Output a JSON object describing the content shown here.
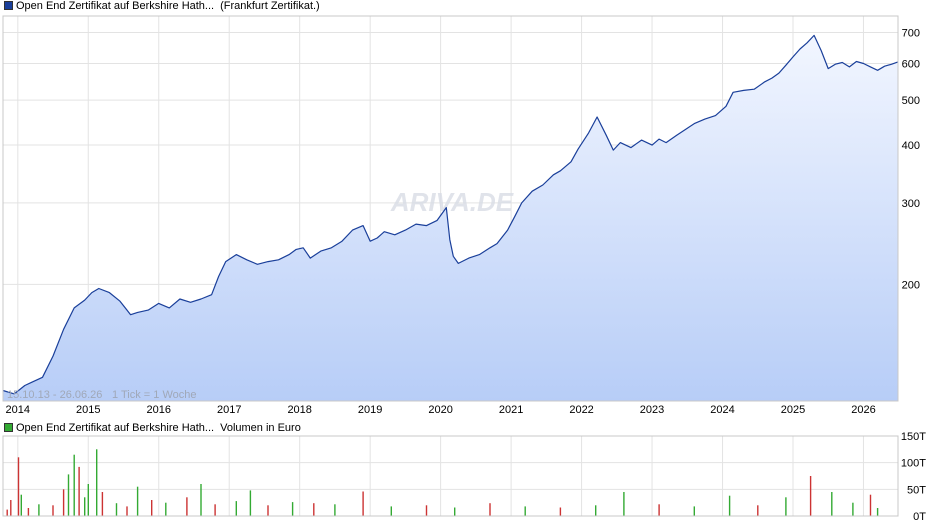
{
  "price_legend": {
    "color": "#1a3f9a",
    "name": "Open End Zertifikat auf Berkshire Hath...",
    "exchange": "(Frankfurt Zertifikat.)"
  },
  "volume_legend": {
    "color": "#33aa33",
    "name": "Open End Zertifikat auf Berkshire Hath...",
    "unit": "Volumen in Euro"
  },
  "range_note": "15.10.13 - 26.06.26",
  "tick_note": "1 Tick = 1 Woche",
  "watermark": "ARIVA.DE",
  "chart_data": [
    {
      "type": "area",
      "scale": "log",
      "ylim": [
        112,
        760
      ],
      "xlim": [
        2013.79,
        2026.49
      ],
      "x_ticks": [
        2014,
        2015,
        2016,
        2017,
        2018,
        2019,
        2020,
        2021,
        2022,
        2023,
        2024,
        2025,
        2026
      ],
      "y_ticks": [
        200,
        300,
        400,
        500,
        600,
        700
      ],
      "grid": true,
      "series": [
        {
          "name": "Open End Zertifikat auf Berkshire Hath...",
          "color": "#1a3f9a",
          "points": [
            [
              2013.79,
              118
            ],
            [
              2013.95,
              116
            ],
            [
              2014.1,
              121
            ],
            [
              2014.2,
              123
            ],
            [
              2014.35,
              126
            ],
            [
              2014.5,
              140
            ],
            [
              2014.65,
              160
            ],
            [
              2014.8,
              178
            ],
            [
              2014.95,
              185
            ],
            [
              2015.05,
              192
            ],
            [
              2015.15,
              196
            ],
            [
              2015.3,
              192
            ],
            [
              2015.45,
              184
            ],
            [
              2015.6,
              172
            ],
            [
              2015.7,
              174
            ],
            [
              2015.85,
              176
            ],
            [
              2016.0,
              182
            ],
            [
              2016.15,
              178
            ],
            [
              2016.3,
              186
            ],
            [
              2016.45,
              183
            ],
            [
              2016.6,
              186
            ],
            [
              2016.75,
              190
            ],
            [
              2016.85,
              208
            ],
            [
              2016.95,
              224
            ],
            [
              2017.1,
              232
            ],
            [
              2017.25,
              226
            ],
            [
              2017.4,
              221
            ],
            [
              2017.55,
              224
            ],
            [
              2017.7,
              226
            ],
            [
              2017.85,
              232
            ],
            [
              2017.95,
              238
            ],
            [
              2018.05,
              240
            ],
            [
              2018.15,
              228
            ],
            [
              2018.3,
              236
            ],
            [
              2018.45,
              240
            ],
            [
              2018.6,
              248
            ],
            [
              2018.75,
              262
            ],
            [
              2018.9,
              268
            ],
            [
              2019.0,
              248
            ],
            [
              2019.1,
              252
            ],
            [
              2019.2,
              260
            ],
            [
              2019.35,
              256
            ],
            [
              2019.5,
              262
            ],
            [
              2019.65,
              270
            ],
            [
              2019.8,
              268
            ],
            [
              2019.95,
              275
            ],
            [
              2020.08,
              293
            ],
            [
              2020.13,
              250
            ],
            [
              2020.18,
              230
            ],
            [
              2020.25,
              222
            ],
            [
              2020.4,
              228
            ],
            [
              2020.55,
              232
            ],
            [
              2020.7,
              240
            ],
            [
              2020.8,
              245
            ],
            [
              2020.95,
              262
            ],
            [
              2021.05,
              280
            ],
            [
              2021.15,
              300
            ],
            [
              2021.3,
              318
            ],
            [
              2021.45,
              328
            ],
            [
              2021.6,
              345
            ],
            [
              2021.7,
              352
            ],
            [
              2021.85,
              368
            ],
            [
              2021.95,
              392
            ],
            [
              2022.1,
              425
            ],
            [
              2022.22,
              460
            ],
            [
              2022.35,
              420
            ],
            [
              2022.45,
              390
            ],
            [
              2022.55,
              405
            ],
            [
              2022.7,
              395
            ],
            [
              2022.85,
              410
            ],
            [
              2023.0,
              400
            ],
            [
              2023.1,
              412
            ],
            [
              2023.2,
              405
            ],
            [
              2023.35,
              420
            ],
            [
              2023.5,
              435
            ],
            [
              2023.6,
              445
            ],
            [
              2023.75,
              455
            ],
            [
              2023.9,
              463
            ],
            [
              2024.05,
              485
            ],
            [
              2024.15,
              520
            ],
            [
              2024.3,
              525
            ],
            [
              2024.45,
              528
            ],
            [
              2024.6,
              548
            ],
            [
              2024.7,
              558
            ],
            [
              2024.8,
              572
            ],
            [
              2024.9,
              595
            ],
            [
              2025.0,
              620
            ],
            [
              2025.1,
              645
            ],
            [
              2025.2,
              665
            ],
            [
              2025.3,
              690
            ],
            [
              2025.4,
              640
            ],
            [
              2025.5,
              585
            ],
            [
              2025.6,
              598
            ],
            [
              2025.7,
              603
            ],
            [
              2025.8,
              590
            ],
            [
              2025.9,
              606
            ],
            [
              2026.0,
              600
            ],
            [
              2026.1,
              590
            ],
            [
              2026.2,
              580
            ],
            [
              2026.3,
              592
            ],
            [
              2026.4,
              598
            ],
            [
              2026.49,
              605
            ]
          ]
        }
      ]
    },
    {
      "type": "bar",
      "ylim": [
        0,
        150
      ],
      "y_ticks": [
        0,
        50,
        100,
        150
      ],
      "y_tick_labels": [
        "0T",
        "50T",
        "100T",
        "150T"
      ],
      "colors": {
        "up": "#33aa33",
        "down": "#cc3333"
      },
      "series": [
        {
          "name": "Volumen in Euro",
          "values": [
            [
              2013.85,
              12,
              "down"
            ],
            [
              2013.9,
              30,
              "down"
            ],
            [
              2014.01,
              110,
              "down"
            ],
            [
              2014.05,
              40,
              "up"
            ],
            [
              2014.15,
              15,
              "down"
            ],
            [
              2014.3,
              22,
              "up"
            ],
            [
              2014.5,
              20,
              "down"
            ],
            [
              2014.65,
              50,
              "down"
            ],
            [
              2014.72,
              78,
              "up"
            ],
            [
              2014.8,
              115,
              "up"
            ],
            [
              2014.87,
              92,
              "down"
            ],
            [
              2014.95,
              35,
              "up"
            ],
            [
              2015.0,
              60,
              "up"
            ],
            [
              2015.12,
              125,
              "up"
            ],
            [
              2015.2,
              45,
              "down"
            ],
            [
              2015.4,
              24,
              "up"
            ],
            [
              2015.55,
              18,
              "down"
            ],
            [
              2015.7,
              55,
              "up"
            ],
            [
              2015.9,
              30,
              "down"
            ],
            [
              2016.1,
              25,
              "up"
            ],
            [
              2016.4,
              35,
              "down"
            ],
            [
              2016.6,
              60,
              "up"
            ],
            [
              2016.8,
              22,
              "down"
            ],
            [
              2017.1,
              28,
              "up"
            ],
            [
              2017.3,
              48,
              "up"
            ],
            [
              2017.55,
              20,
              "down"
            ],
            [
              2017.9,
              26,
              "up"
            ],
            [
              2018.2,
              24,
              "down"
            ],
            [
              2018.5,
              22,
              "up"
            ],
            [
              2018.9,
              46,
              "down"
            ],
            [
              2019.3,
              18,
              "up"
            ],
            [
              2019.8,
              20,
              "down"
            ],
            [
              2020.2,
              16,
              "up"
            ],
            [
              2020.7,
              24,
              "down"
            ],
            [
              2021.2,
              18,
              "up"
            ],
            [
              2021.7,
              16,
              "down"
            ],
            [
              2022.2,
              20,
              "up"
            ],
            [
              2022.6,
              45,
              "up"
            ],
            [
              2023.1,
              22,
              "down"
            ],
            [
              2023.6,
              18,
              "up"
            ],
            [
              2024.1,
              38,
              "up"
            ],
            [
              2024.5,
              20,
              "down"
            ],
            [
              2024.9,
              35,
              "up"
            ],
            [
              2025.25,
              75,
              "down"
            ],
            [
              2025.55,
              45,
              "up"
            ],
            [
              2025.85,
              25,
              "up"
            ],
            [
              2026.1,
              40,
              "down"
            ],
            [
              2026.2,
              15,
              "up"
            ]
          ]
        }
      ]
    }
  ]
}
